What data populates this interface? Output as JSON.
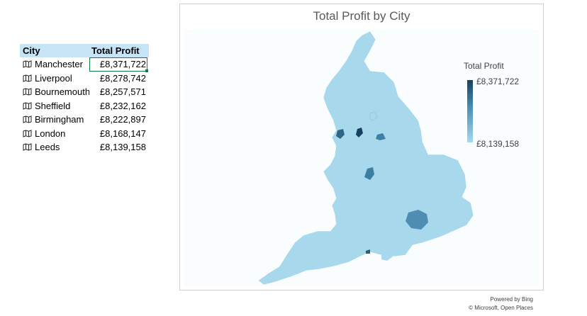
{
  "table": {
    "headers": {
      "city": "City",
      "profit": "Total Profit"
    },
    "rows": [
      {
        "city": "Manchester",
        "profit": "£8,371,722"
      },
      {
        "city": "Liverpool",
        "profit": "£8,278,742"
      },
      {
        "city": "Bournemouth",
        "profit": "£8,257,571"
      },
      {
        "city": "Sheffield",
        "profit": "£8,232,162"
      },
      {
        "city": "Birmingham",
        "profit": "£8,222,897"
      },
      {
        "city": "London",
        "profit": "£8,168,147"
      },
      {
        "city": "Leeds",
        "profit": "£8,139,158"
      }
    ],
    "selected_row": 0,
    "header_color": "#c5e4f5",
    "selection_color": "#107c41",
    "row_icon": "map-icon"
  },
  "chart": {
    "title": "Total Profit by City",
    "legend": {
      "title": "Total Profit",
      "max_label": "£8,371,722",
      "min_label": "£8,139,158"
    },
    "attribution": {
      "line1": "Powered by Bing",
      "line2": "© Microsoft, Open Places"
    },
    "base_fill": "#a8d8ec",
    "scale_colors": [
      "#a8d8ec",
      "#17415f"
    ]
  },
  "chart_data": {
    "type": "map",
    "title": "Total Profit by City",
    "value_label": "Total Profit",
    "regions": [
      "Manchester",
      "Liverpool",
      "Bournemouth",
      "Sheffield",
      "Birmingham",
      "London",
      "Leeds"
    ],
    "values": [
      8371722,
      8278742,
      8257571,
      8232162,
      8222897,
      8168147,
      8139158
    ],
    "color_scale": {
      "min": 8139158,
      "max": 8371722,
      "min_color": "#a8d8ec",
      "max_color": "#17415f"
    },
    "legend_position": "top-right"
  }
}
